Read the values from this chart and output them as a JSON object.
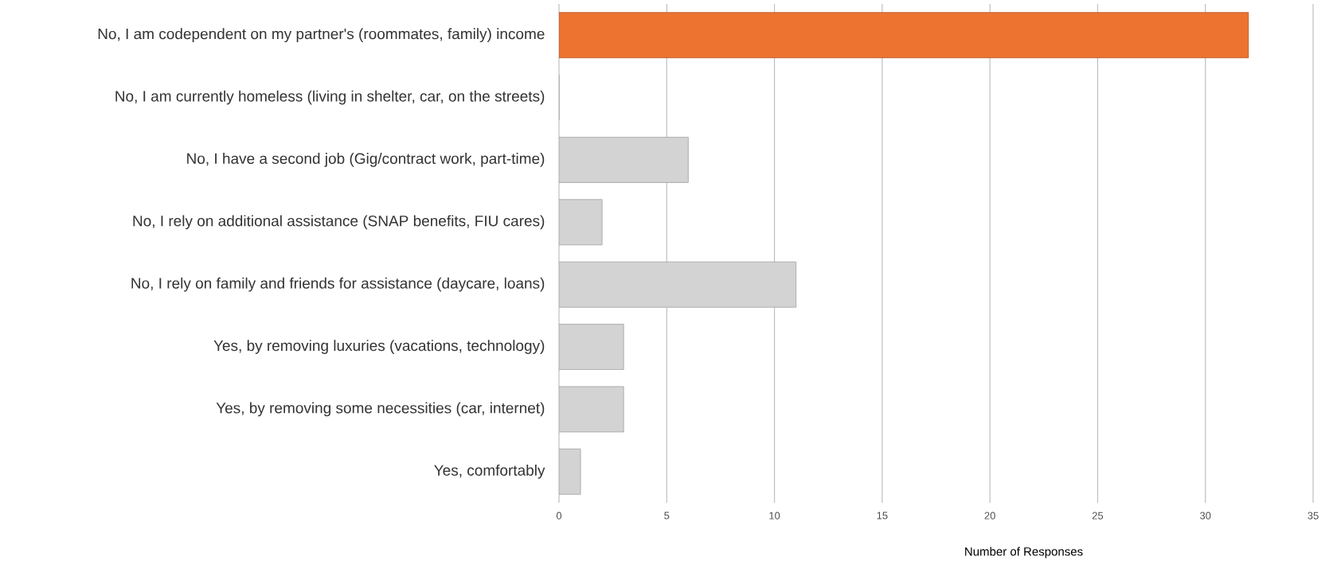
{
  "chart_data": {
    "type": "bar",
    "orientation": "horizontal",
    "xlabel": "Number of Responses",
    "categories": [
      "No, I am codependent on my partner's (roommates, family) income",
      "No, I am currently homeless (living in shelter, car, on the streets)",
      "No, I have a second job (Gig/contract work, part-time)",
      "No, I rely on additional assistance (SNAP benefits, FIU cares)",
      "No, I rely on family and friends for assistance (daycare, loans)",
      "Yes, by removing luxuries (vacations, technology)",
      "Yes, by removing some necessities (car, internet)",
      "Yes, comfortably"
    ],
    "values": [
      32,
      0,
      6,
      2,
      11,
      3,
      3,
      1
    ],
    "colors": [
      "#ed7331",
      "#d3d3d3",
      "#d3d3d3",
      "#d3d3d3",
      "#d3d3d3",
      "#d3d3d3",
      "#d3d3d3",
      "#d3d3d3"
    ],
    "xlim": [
      0,
      35
    ],
    "xticks": [
      0,
      5,
      10,
      15,
      20,
      25,
      30,
      35
    ],
    "grid": "x"
  }
}
